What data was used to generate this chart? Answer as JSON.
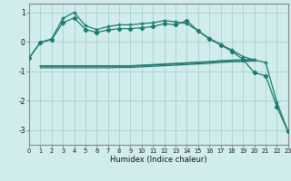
{
  "xlabel": "Humidex (Indice chaleur)",
  "bg_color": "#d0ecec",
  "grid_color": "#b0d4d4",
  "line_color": "#1a7a6e",
  "xlim": [
    0,
    23
  ],
  "ylim": [
    -3.5,
    1.3
  ],
  "yticks": [
    -3,
    -2,
    -1,
    0,
    1
  ],
  "xticks": [
    0,
    1,
    2,
    3,
    4,
    5,
    6,
    7,
    8,
    9,
    10,
    11,
    12,
    13,
    14,
    15,
    16,
    17,
    18,
    19,
    20,
    21,
    22,
    23
  ],
  "line1_x": [
    0,
    1,
    2,
    3,
    4,
    5,
    6,
    7,
    8,
    9,
    10,
    11,
    12,
    13,
    14,
    15,
    16,
    17,
    18,
    19,
    20,
    21,
    22,
    23
  ],
  "line1_y": [
    -0.55,
    -0.02,
    0.08,
    0.65,
    0.82,
    0.42,
    0.32,
    0.4,
    0.45,
    0.45,
    0.48,
    0.52,
    0.62,
    0.58,
    0.72,
    0.38,
    0.1,
    -0.1,
    -0.32,
    -0.6,
    -1.05,
    -1.15,
    -2.2,
    -3.05
  ],
  "line2_x": [
    0,
    1,
    2,
    3,
    4,
    5,
    6,
    7,
    8,
    9,
    10,
    11,
    12,
    13,
    14,
    15,
    16,
    17,
    18,
    19,
    20,
    21,
    22,
    23
  ],
  "line2_y": [
    -0.55,
    -0.02,
    0.1,
    0.8,
    1.0,
    0.55,
    0.42,
    0.52,
    0.58,
    0.58,
    0.62,
    0.65,
    0.72,
    0.68,
    0.62,
    0.38,
    0.12,
    -0.08,
    -0.28,
    -0.5,
    -0.62,
    -0.7,
    -2.05,
    -3.05
  ],
  "line3_x": [
    1,
    2,
    3,
    4,
    5,
    6,
    7,
    8,
    9,
    10,
    11,
    12,
    13,
    14,
    15,
    16,
    17,
    18,
    19,
    20
  ],
  "line3_y": [
    -0.82,
    -0.82,
    -0.82,
    -0.82,
    -0.82,
    -0.82,
    -0.82,
    -0.82,
    -0.82,
    -0.8,
    -0.78,
    -0.76,
    -0.74,
    -0.72,
    -0.7,
    -0.68,
    -0.65,
    -0.63,
    -0.62,
    -0.6
  ],
  "line4_x": [
    1,
    2,
    3,
    4,
    5,
    6,
    7,
    8,
    9,
    10,
    11,
    12,
    13,
    14,
    15,
    16,
    17,
    18,
    19,
    20
  ],
  "line4_y": [
    -0.88,
    -0.88,
    -0.88,
    -0.88,
    -0.88,
    -0.88,
    -0.88,
    -0.87,
    -0.87,
    -0.85,
    -0.83,
    -0.81,
    -0.79,
    -0.77,
    -0.75,
    -0.73,
    -0.7,
    -0.68,
    -0.67,
    -0.65
  ]
}
